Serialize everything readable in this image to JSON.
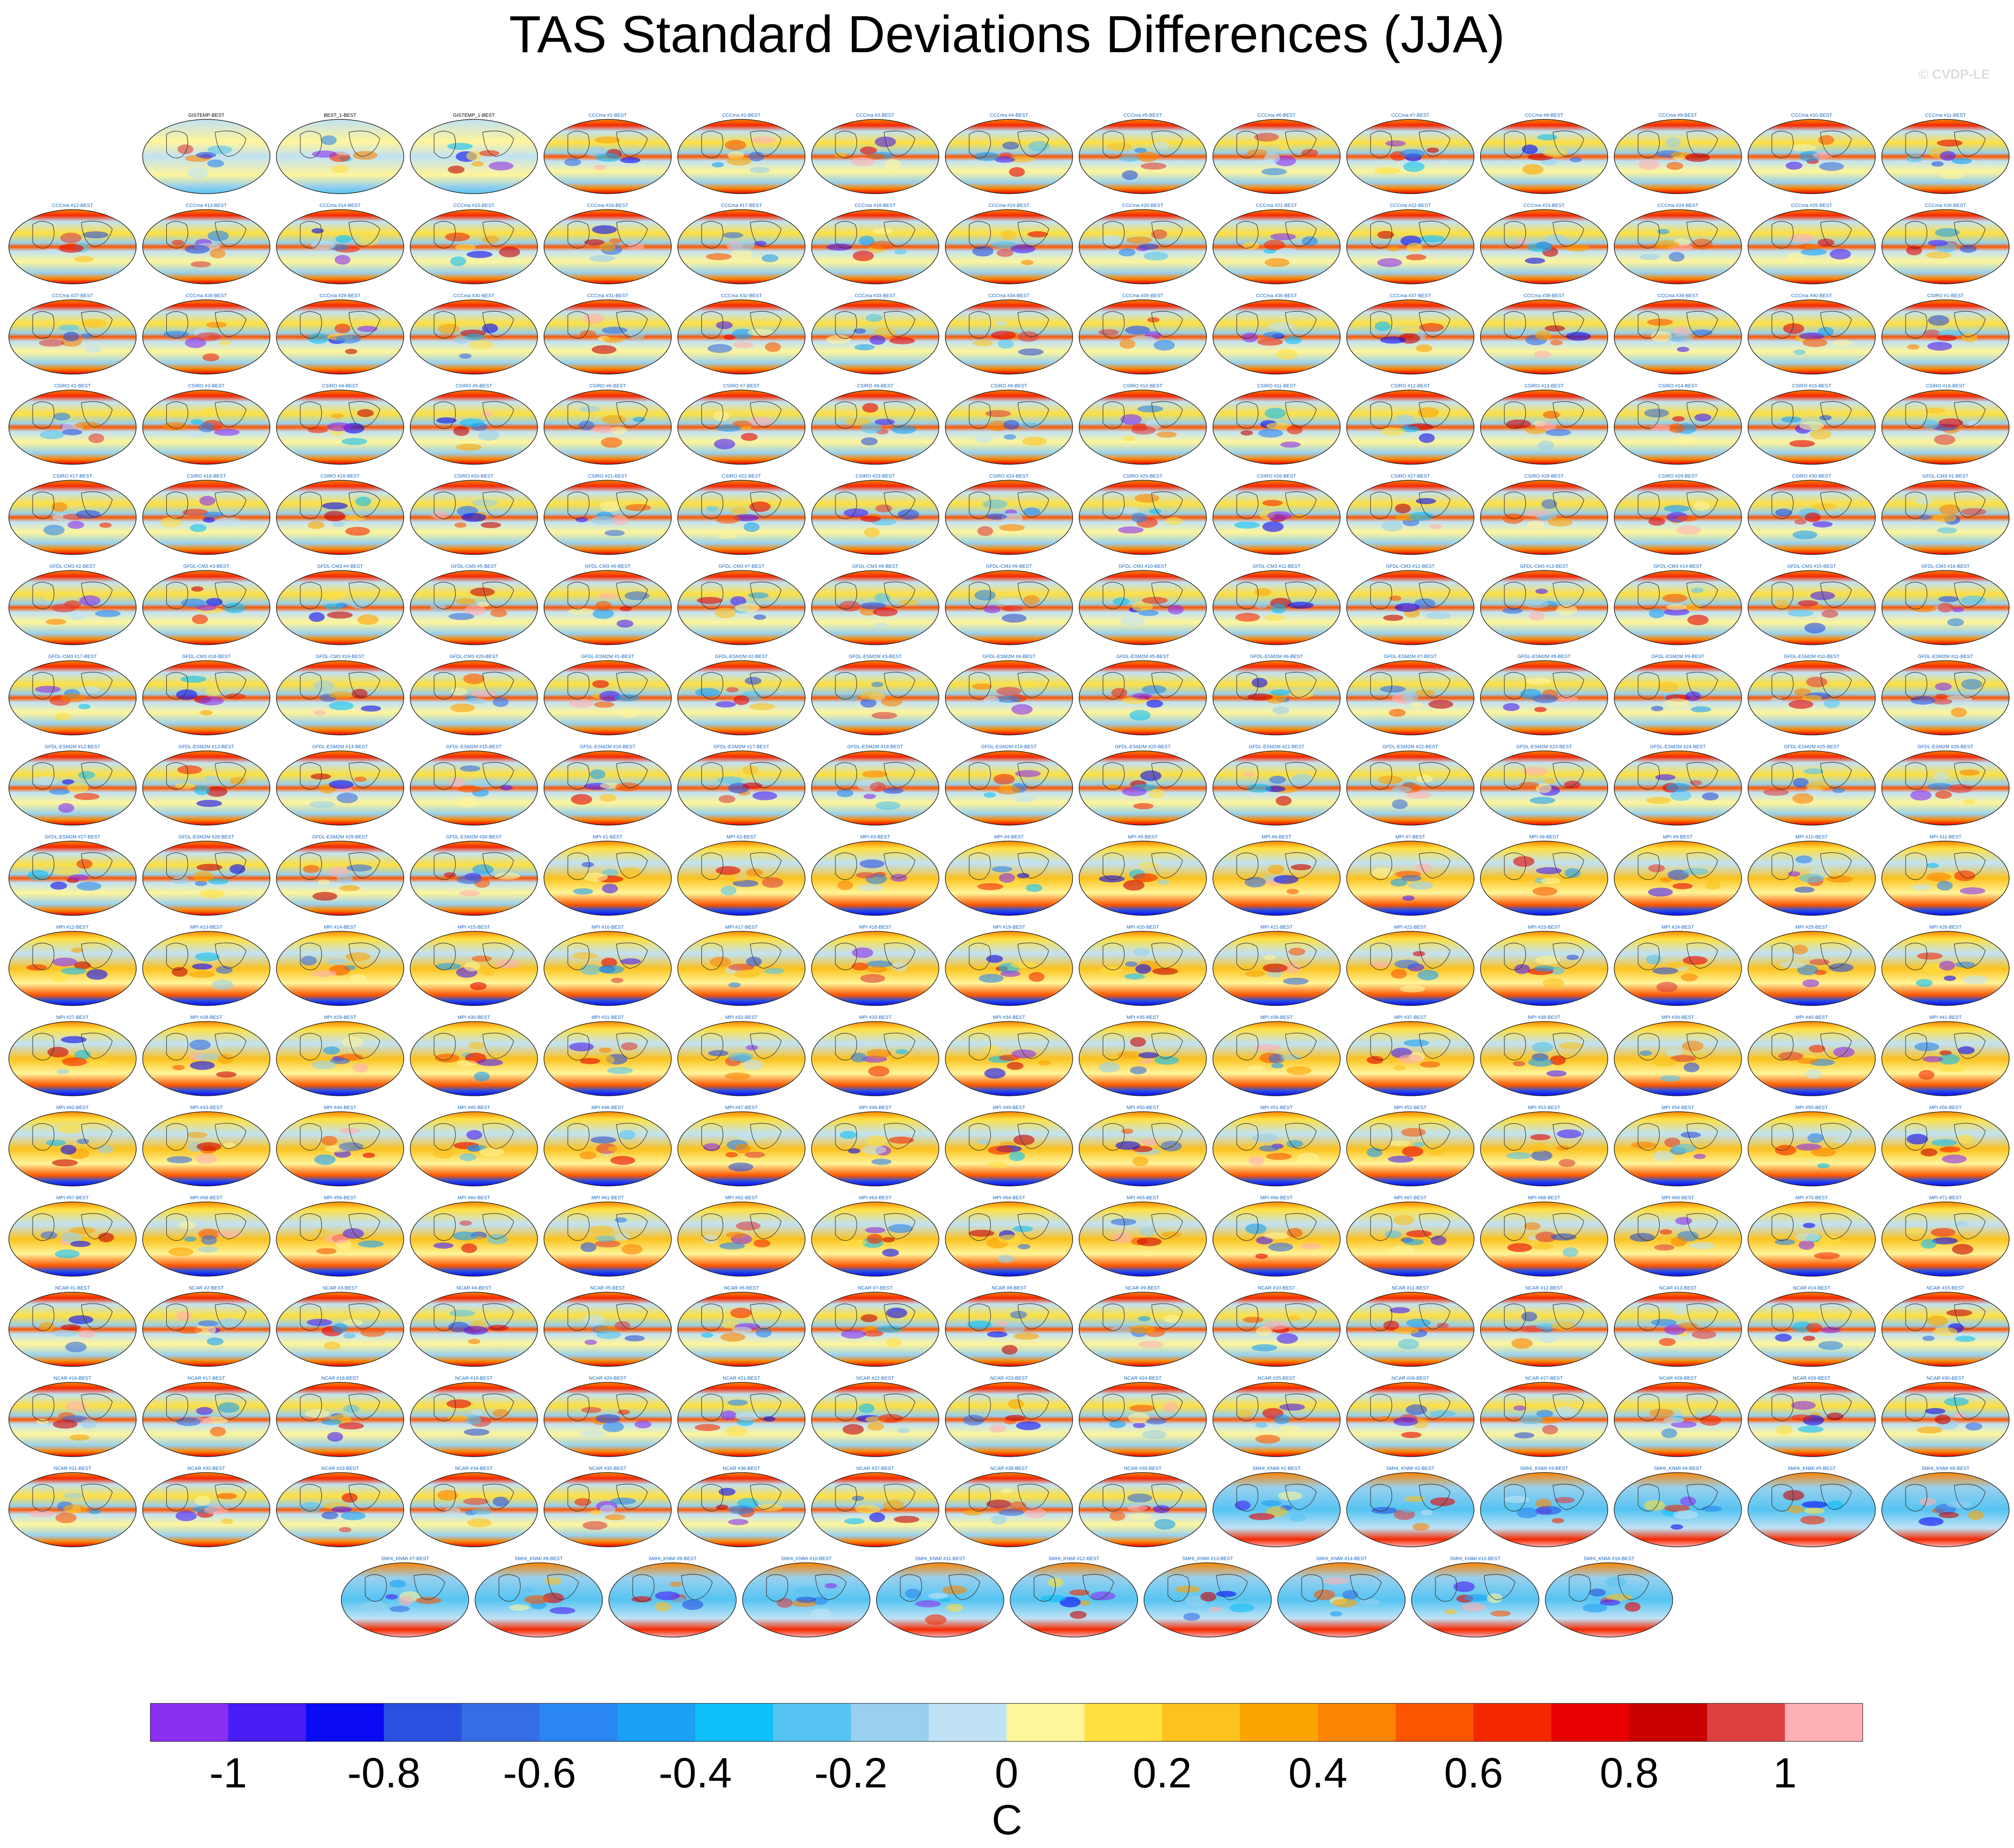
{
  "chart_data": {
    "type": "heatmap",
    "title": "TAS Standard Deviations Differences (JJA)",
    "watermark": "© CVDP-LE",
    "colorbar": {
      "label": "C",
      "range": [
        -1.1,
        1.1
      ],
      "tick_values": [
        -1,
        -0.8,
        -0.6,
        -0.4,
        -0.2,
        0,
        0.2,
        0.4,
        0.6,
        0.8,
        1
      ],
      "tick_labels": [
        "-1",
        "-0.8",
        "-0.6",
        "-0.4",
        "-0.2",
        "0",
        "0.2",
        "0.4",
        "0.6",
        "0.8",
        "1"
      ],
      "colors": [
        "#8b2ff0",
        "#4a1cf6",
        "#0a0af5",
        "#2a50e0",
        "#356ee4",
        "#2a86f0",
        "#1aa0f5",
        "#0dc0f8",
        "#55c4f2",
        "#98d0ee",
        "#c0e2f5",
        "#fff59a",
        "#ffe040",
        "#fcc21e",
        "#fba400",
        "#fb8400",
        "#fb5500",
        "#f52800",
        "#e80000",
        "#c80000",
        "#dc4040",
        "#ffb0b4"
      ]
    },
    "panels": [
      "GISTEMP-BEST",
      "BEST_1-BEST",
      "GISTEMP_1-BEST",
      "CCCma #1-BEST",
      "CCCma #2-BEST",
      "CCCma #3-BEST",
      "CCCma #4-BEST",
      "CCCma #5-BEST",
      "CCCma #6-BEST",
      "CCCma #7-BEST",
      "CCCma #8-BEST",
      "CCCma #9-BEST",
      "CCCma #10-BEST",
      "CCCma #11-BEST",
      "CCCma #12-BEST",
      "CCCma #13-BEST",
      "CCCma #14-BEST",
      "CCCma #15-BEST",
      "CCCma #16-BEST",
      "CCCma #17-BEST",
      "CCCma #18-BEST",
      "CCCma #19-BEST",
      "CCCma #20-BEST",
      "CCCma #21-BEST",
      "CCCma #22-BEST",
      "CCCma #23-BEST",
      "CCCma #24-BEST",
      "CCCma #25-BEST",
      "CCCma #26-BEST",
      "CCCma #27-BEST",
      "CCCma #28-BEST",
      "CCCma #29-BEST",
      "CCCma #30-BEST",
      "CCCma #31-BEST",
      "CCCma #32-BEST",
      "CCCma #33-BEST",
      "CCCma #34-BEST",
      "CCCma #35-BEST",
      "CCCma #36-BEST",
      "CCCma #37-BEST",
      "CCCma #38-BEST",
      "CCCma #39-BEST",
      "CCCma #40-BEST",
      "CSIRO #1-BEST",
      "CSIRO #2-BEST",
      "CSIRO #3-BEST",
      "CSIRO #4-BEST",
      "CSIRO #5-BEST",
      "CSIRO #6-BEST",
      "CSIRO #7-BEST",
      "CSIRO #8-BEST",
      "CSIRO #9-BEST",
      "CSIRO #10-BEST",
      "CSIRO #11-BEST",
      "CSIRO #12-BEST",
      "CSIRO #13-BEST",
      "CSIRO #14-BEST",
      "CSIRO #15-BEST",
      "CSIRO #16-BEST",
      "CSIRO #17-BEST",
      "CSIRO #18-BEST",
      "CSIRO #19-BEST",
      "CSIRO #20-BEST",
      "CSIRO #21-BEST",
      "CSIRO #22-BEST",
      "CSIRO #23-BEST",
      "CSIRO #24-BEST",
      "CSIRO #25-BEST",
      "CSIRO #26-BEST",
      "CSIRO #27-BEST",
      "CSIRO #28-BEST",
      "CSIRO #29-BEST",
      "CSIRO #30-BEST",
      "GFDL-CM3 #1-BEST",
      "GFDL-CM3 #2-BEST",
      "GFDL-CM3 #3-BEST",
      "GFDL-CM3 #4-BEST",
      "GFDL-CM3 #5-BEST",
      "GFDL-CM3 #6-BEST",
      "GFDL-CM3 #7-BEST",
      "GFDL-CM3 #8-BEST",
      "GFDL-CM3 #9-BEST",
      "GFDL-CM3 #10-BEST",
      "GFDL-CM3 #11-BEST",
      "GFDL-CM3 #12-BEST",
      "GFDL-CM3 #13-BEST",
      "GFDL-CM3 #14-BEST",
      "GFDL-CM3 #15-BEST",
      "GFDL-CM3 #16-BEST",
      "GFDL-CM3 #17-BEST",
      "GFDL-CM3 #18-BEST",
      "GFDL-CM3 #19-BEST",
      "GFDL-CM3 #20-BEST",
      "GFDL-ESM2M #1-BEST",
      "GFDL-ESM2M #2-BEST",
      "GFDL-ESM2M #3-BEST",
      "GFDL-ESM2M #4-BEST",
      "GFDL-ESM2M #5-BEST",
      "GFDL-ESM2M #6-BEST",
      "GFDL-ESM2M #7-BEST",
      "GFDL-ESM2M #8-BEST",
      "GFDL-ESM2M #9-BEST",
      "GFDL-ESM2M #10-BEST",
      "GFDL-ESM2M #11-BEST",
      "GFDL-ESM2M #12-BEST",
      "GFDL-ESM2M #13-BEST",
      "GFDL-ESM2M #14-BEST",
      "GFDL-ESM2M #15-BEST",
      "GFDL-ESM2M #16-BEST",
      "GFDL-ESM2M #17-BEST",
      "GFDL-ESM2M #18-BEST",
      "GFDL-ESM2M #19-BEST",
      "GFDL-ESM2M #20-BEST",
      "GFDL-ESM2M #21-BEST",
      "GFDL-ESM2M #22-BEST",
      "GFDL-ESM2M #23-BEST",
      "GFDL-ESM2M #24-BEST",
      "GFDL-ESM2M #25-BEST",
      "GFDL-ESM2M #26-BEST",
      "GFDL-ESM2M #27-BEST",
      "GFDL-ESM2M #28-BEST",
      "GFDL-ESM2M #29-BEST",
      "GFDL-ESM2M #30-BEST",
      "MPI #1-BEST",
      "MPI #2-BEST",
      "MPI #3-BEST",
      "MPI #4-BEST",
      "MPI #5-BEST",
      "MPI #6-BEST",
      "MPI #7-BEST",
      "MPI #8-BEST",
      "MPI #9-BEST",
      "MPI #10-BEST",
      "MPI #11-BEST",
      "MPI #12-BEST",
      "MPI #13-BEST",
      "MPI #14-BEST",
      "MPI #15-BEST",
      "MPI #16-BEST",
      "MPI #17-BEST",
      "MPI #18-BEST",
      "MPI #19-BEST",
      "MPI #20-BEST",
      "MPI #21-BEST",
      "MPI #22-BEST",
      "MPI #23-BEST",
      "MPI #24-BEST",
      "MPI #25-BEST",
      "MPI #26-BEST",
      "MPI #27-BEST",
      "MPI #28-BEST",
      "MPI #29-BEST",
      "MPI #30-BEST",
      "MPI #31-BEST",
      "MPI #32-BEST",
      "MPI #33-BEST",
      "MPI #34-BEST",
      "MPI #35-BEST",
      "MPI #36-BEST",
      "MPI #37-BEST",
      "MPI #38-BEST",
      "MPI #39-BEST",
      "MPI #40-BEST",
      "MPI #41-BEST",
      "MPI #42-BEST",
      "MPI #43-BEST",
      "MPI #44-BEST",
      "MPI #45-BEST",
      "MPI #46-BEST",
      "MPI #47-BEST",
      "MPI #48-BEST",
      "MPI #49-BEST",
      "MPI #50-BEST",
      "MPI #51-BEST",
      "MPI #52-BEST",
      "MPI #53-BEST",
      "MPI #54-BEST",
      "MPI #55-BEST",
      "MPI #56-BEST",
      "MPI #57-BEST",
      "MPI #58-BEST",
      "MPI #59-BEST",
      "MPI #60-BEST",
      "MPI #61-BEST",
      "MPI #62-BEST",
      "MPI #63-BEST",
      "MPI #64-BEST",
      "MPI #65-BEST",
      "MPI #66-BEST",
      "MPI #67-BEST",
      "MPI #68-BEST",
      "MPI #69-BEST",
      "MPI #70-BEST",
      "MPI #71-BEST",
      "NCAR #1-BEST",
      "NCAR #2-BEST",
      "NCAR #3-BEST",
      "NCAR #4-BEST",
      "NCAR #5-BEST",
      "NCAR #6-BEST",
      "NCAR #7-BEST",
      "NCAR #8-BEST",
      "NCAR #9-BEST",
      "NCAR #10-BEST",
      "NCAR #11-BEST",
      "NCAR #12-BEST",
      "NCAR #13-BEST",
      "NCAR #14-BEST",
      "NCAR #15-BEST",
      "NCAR #16-BEST",
      "NCAR #17-BEST",
      "NCAR #18-BEST",
      "NCAR #19-BEST",
      "NCAR #20-BEST",
      "NCAR #21-BEST",
      "NCAR #22-BEST",
      "NCAR #23-BEST",
      "NCAR #24-BEST",
      "NCAR #25-BEST",
      "NCAR #26-BEST",
      "NCAR #27-BEST",
      "NCAR #28-BEST",
      "NCAR #29-BEST",
      "NCAR #30-BEST",
      "NCAR #31-BEST",
      "NCAR #32-BEST",
      "NCAR #33-BEST",
      "NCAR #34-BEST",
      "NCAR #35-BEST",
      "NCAR #36-BEST",
      "NCAR #37-BEST",
      "NCAR #38-BEST",
      "NCAR #39-BEST",
      "SMHI_KNMI #1-BEST",
      "SMHI_KNMI #2-BEST",
      "SMHI_KNMI #3-BEST",
      "SMHI_KNMI #4-BEST",
      "SMHI_KNMI #5-BEST",
      "SMHI_KNMI #6-BEST",
      "SMHI_KNMI #7-BEST",
      "SMHI_KNMI #8-BEST",
      "SMHI_KNMI #9-BEST",
      "SMHI_KNMI #10-BEST",
      "SMHI_KNMI #11-BEST",
      "SMHI_KNMI #12-BEST",
      "SMHI_KNMI #13-BEST",
      "SMHI_KNMI #14-BEST",
      "SMHI_KNMI #15-BEST",
      "SMHI_KNMI #16-BEST"
    ]
  }
}
